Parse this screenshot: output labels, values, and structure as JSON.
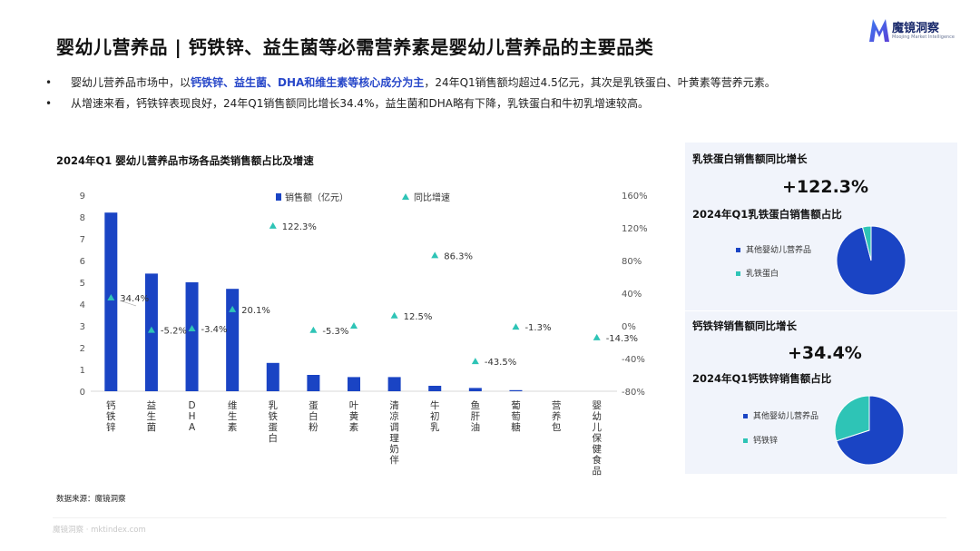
{
  "page_title": "婴幼儿营养品 | 钙铁锌、益生菌等必需营养素是婴幼儿营养品的主要品类",
  "logo": {
    "name": "魔镜洞察",
    "tagline": "Moojing Market Intelligence"
  },
  "bullets": [
    {
      "dot": "•",
      "prefix": "婴幼儿营养品市场中，以",
      "highlight": "钙铁锌、益生菌、DHA和维生素等核心成分为主",
      "suffix": "，24年Q1销售额均超过4.5亿元，其次是乳铁蛋白、叶黄素等营养元素。"
    },
    {
      "dot": "•",
      "text": "从增速来看，钙铁锌表现良好，24年Q1销售额同比增长34.4%，益生菌和DHA略有下降，乳铁蛋白和牛初乳增速较高。"
    }
  ],
  "chart_data": {
    "type": "bar+scatter",
    "title": "2024年Q1 婴幼儿营养品市场各品类销售额占比及增速",
    "categories": [
      "钙铁锌",
      "益生菌",
      "DHA",
      "维生素",
      "乳铁蛋白",
      "蛋白粉",
      "叶黄素",
      "清凉调理奶伴",
      "牛初乳",
      "鱼肝油",
      "葡萄糖",
      "营养包",
      "婴幼儿保健食品"
    ],
    "series": [
      {
        "name": "销售额（亿元）",
        "type": "bar",
        "axis": "left",
        "color": "#1a44c4",
        "values": [
          8.2,
          5.4,
          5.0,
          4.7,
          1.3,
          0.75,
          0.65,
          0.65,
          0.25,
          0.15,
          0.05,
          0.0,
          0.0
        ]
      },
      {
        "name": "同比增速",
        "type": "scatter",
        "axis": "right",
        "color": "#2ec4b6",
        "values": [
          34.4,
          -5.2,
          -3.4,
          20.1,
          122.3,
          -5.3,
          0.0,
          12.5,
          86.3,
          -43.5,
          -1.3,
          null,
          -14.3
        ],
        "labels": [
          "34.4%",
          "-5.2%",
          "-3.4%",
          "20.1%",
          "122.3%",
          "-5.3%",
          "",
          "12.5%",
          "86.3%",
          "-43.5%",
          "-1.3%",
          "",
          "-14.3%"
        ]
      }
    ],
    "y_left": {
      "min": 0,
      "max": 9,
      "ticks": [
        "0",
        "1",
        "2",
        "3",
        "4",
        "5",
        "6",
        "7",
        "8",
        "9"
      ]
    },
    "y_right": {
      "min": -80,
      "max": 160,
      "ticks": [
        "-80%",
        "-40%",
        "0%",
        "40%",
        "80%",
        "120%",
        "160%"
      ]
    },
    "legend_position": "top",
    "grid": false
  },
  "source": "数据来源：魔镜洞察",
  "footer": "魔镜洞察 · mktindex.com",
  "panels": [
    {
      "title": "乳铁蛋白销售额同比增长",
      "big": "+122.3%",
      "subtitle": "2024年Q1乳铁蛋白销售额占比",
      "pie": {
        "values": [
          96,
          4
        ],
        "labels": [
          "其他婴幼儿营养品",
          "乳铁蛋白"
        ],
        "colors": [
          "#1a44c4",
          "#2ec4b6"
        ]
      }
    },
    {
      "title": "钙铁锌销售额同比增长",
      "big": "+34.4%",
      "subtitle": "2024年Q1钙铁锌销售额占比",
      "pie": {
        "values": [
          70,
          30
        ],
        "labels": [
          "其他婴幼儿营养品",
          "钙铁锌"
        ],
        "colors": [
          "#1a44c4",
          "#2ec4b6"
        ]
      }
    }
  ]
}
